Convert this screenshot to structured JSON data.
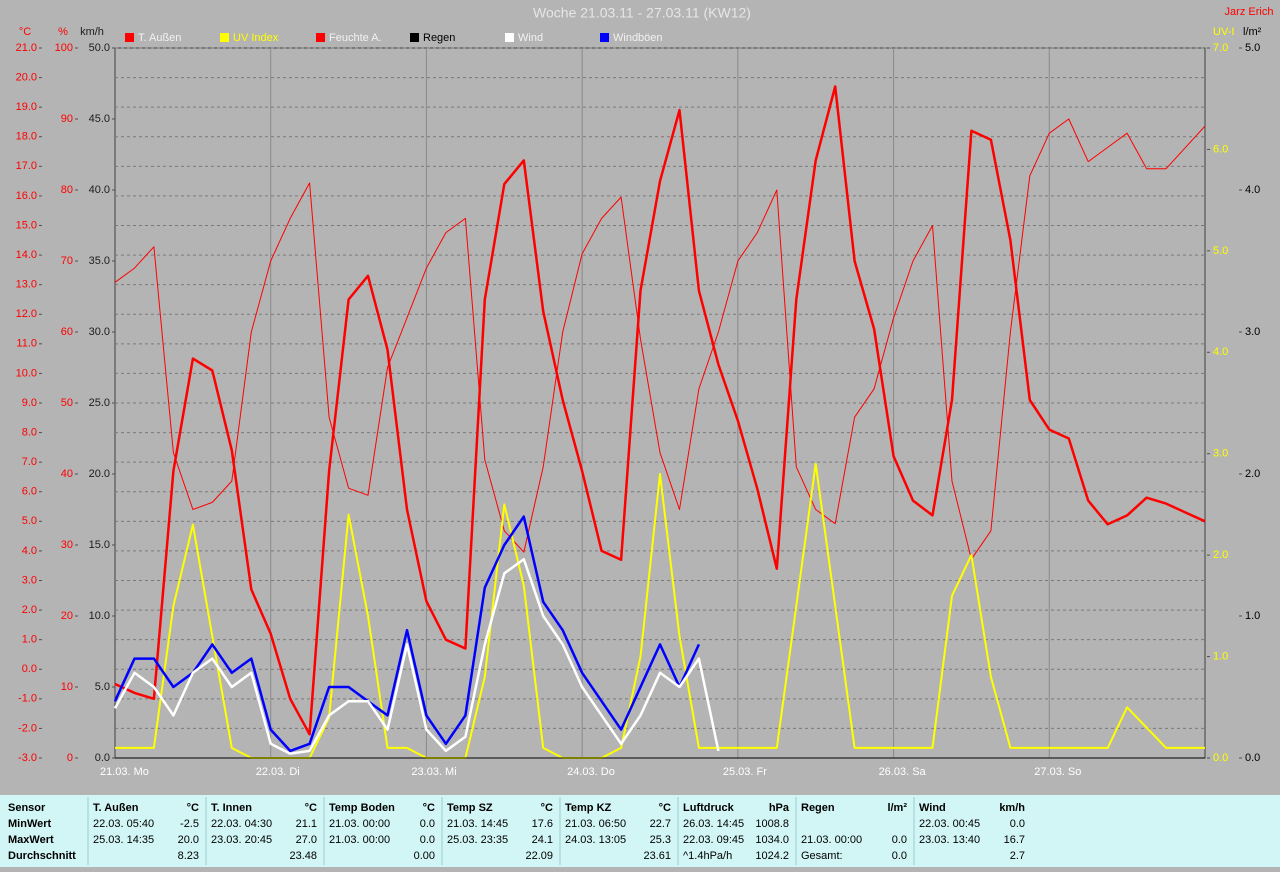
{
  "chart_data": {
    "type": "line",
    "title": "Woche 21.03.11 - 27.03.11 (KW12)",
    "author": "Jarz Erich",
    "xticks": [
      "21.03.  Mo",
      "22.03.  Di",
      "23.03.  Mi",
      "24.03.  Do",
      "25.03.  Fr",
      "26.03.  Sa",
      "27.03.  So"
    ],
    "grid": true,
    "axes": [
      {
        "label": "°C",
        "color": "#ff0000",
        "side": "left",
        "lim": [
          -3,
          21
        ],
        "ticks": [
          {
            "value": -3,
            "label": "-3.0"
          },
          {
            "value": -2,
            "label": "-2.0"
          },
          {
            "value": -1,
            "label": "-1.0"
          },
          {
            "value": 0,
            "label": "0.0"
          },
          {
            "value": 1,
            "label": "1.0"
          },
          {
            "value": 2,
            "label": "2.0"
          },
          {
            "value": 3,
            "label": "3.0"
          },
          {
            "value": 4,
            "label": "4.0"
          },
          {
            "value": 5,
            "label": "5.0"
          },
          {
            "value": 6,
            "label": "6.0"
          },
          {
            "value": 7,
            "label": "7.0"
          },
          {
            "value": 8,
            "label": "8.0"
          },
          {
            "value": 9,
            "label": "9.0"
          },
          {
            "value": 10,
            "label": "10.0"
          },
          {
            "value": 11,
            "label": "11.0"
          },
          {
            "value": 12,
            "label": "12.0"
          },
          {
            "value": 13,
            "label": "13.0"
          },
          {
            "value": 14,
            "label": "14.0"
          },
          {
            "value": 15,
            "label": "15.0"
          },
          {
            "value": 16,
            "label": "16.0"
          },
          {
            "value": 17,
            "label": "17.0"
          },
          {
            "value": 18,
            "label": "18.0"
          },
          {
            "value": 19,
            "label": "19.0"
          },
          {
            "value": 20,
            "label": "20.0"
          },
          {
            "value": 21,
            "label": "21.0"
          }
        ]
      },
      {
        "label": "%",
        "color": "#ff0000",
        "side": "left",
        "lim": [
          0,
          100
        ],
        "ticks": [
          0,
          10,
          20,
          30,
          40,
          50,
          60,
          70,
          80,
          90,
          100
        ]
      },
      {
        "label": "km/h",
        "color": "#202020",
        "side": "left",
        "lim": [
          0,
          50
        ],
        "ticks": [
          {
            "value": 0,
            "label": "0.0"
          },
          {
            "value": 5,
            "label": "5.0"
          },
          {
            "value": 10,
            "label": "10.0"
          },
          {
            "value": 15,
            "label": "15.0"
          },
          {
            "value": 20,
            "label": "20.0"
          },
          {
            "value": 25,
            "label": "25.0"
          },
          {
            "value": 30,
            "label": "30.0"
          },
          {
            "value": 35,
            "label": "35.0"
          },
          {
            "value": 40,
            "label": "40.0"
          },
          {
            "value": 45,
            "label": "45.0"
          },
          {
            "value": 50,
            "label": "50.0"
          }
        ]
      },
      {
        "label": "UV-I",
        "color": "#ffff00",
        "side": "right",
        "lim": [
          0,
          7
        ],
        "ticks": [
          {
            "value": 0,
            "label": "0.0"
          },
          {
            "value": 1,
            "label": "1.0"
          },
          {
            "value": 2,
            "label": "2.0"
          },
          {
            "value": 3,
            "label": "3.0"
          },
          {
            "value": 4,
            "label": "4.0"
          },
          {
            "value": 5,
            "label": "5.0"
          },
          {
            "value": 6,
            "label": "6.0"
          },
          {
            "value": 7,
            "label": "7.0"
          }
        ]
      },
      {
        "label": "l/m²",
        "color": "#000000",
        "side": "right",
        "lim": [
          0,
          5
        ],
        "ticks": [
          {
            "value": 0,
            "label": "0.0"
          },
          {
            "value": 1,
            "label": "1.0"
          },
          {
            "value": 2,
            "label": "2.0"
          },
          {
            "value": 3,
            "label": "3.0"
          },
          {
            "value": 4,
            "label": "4.0"
          },
          {
            "value": 5,
            "label": "5.0"
          }
        ]
      }
    ],
    "series": [
      {
        "name": "T. Außen",
        "color": "#ff0000",
        "axis": 0,
        "line_width": 2.5,
        "values": [
          -0.5,
          -0.8,
          -1.0,
          6.7,
          10.5,
          10.1,
          7.4,
          2.7,
          1.2,
          -1.0,
          -2.2,
          6.7,
          12.5,
          13.3,
          10.8,
          5.4,
          2.3,
          1.0,
          0.7,
          12.5,
          16.4,
          17.2,
          12.1,
          9.1,
          6.7,
          4.0,
          3.7,
          12.8,
          16.5,
          18.9,
          12.8,
          10.3,
          8.4,
          6.1,
          3.4,
          12.5,
          17.2,
          19.7,
          13.8,
          11.5,
          7.2,
          5.7,
          5.2,
          9.1,
          18.2,
          17.9,
          14.5,
          9.1,
          8.1,
          7.8,
          5.7,
          4.9,
          5.2,
          5.8,
          5.6,
          5.3,
          5.0
        ]
      },
      {
        "name": "UV Index",
        "color": "#ffff00",
        "axis": 3,
        "line_width": 2,
        "values": [
          0.1,
          0.1,
          0.1,
          1.5,
          2.3,
          1.2,
          0.1,
          0.0,
          0.0,
          0.0,
          0.0,
          0.4,
          2.4,
          1.4,
          0.1,
          0.1,
          0.0,
          0.0,
          0.0,
          0.8,
          2.5,
          1.7,
          0.1,
          0.0,
          0.0,
          0.0,
          0.1,
          1.0,
          2.8,
          1.2,
          0.1,
          0.1,
          0.1,
          0.1,
          0.1,
          1.5,
          2.9,
          1.5,
          0.1,
          0.1,
          0.1,
          0.1,
          0.1,
          1.6,
          2.0,
          0.8,
          0.1,
          0.1,
          0.1,
          0.1,
          0.1,
          0.1,
          0.5,
          0.3,
          0.1,
          0.1,
          0.1
        ]
      },
      {
        "name": "Feuchte A.",
        "color": "#ff0000",
        "axis": 1,
        "line_width": 1,
        "values": [
          67,
          69,
          72,
          43,
          35,
          36,
          39,
          60,
          70,
          76,
          81,
          48,
          38,
          37,
          55,
          62,
          69,
          74,
          76,
          42,
          32,
          29,
          41,
          60,
          71,
          76,
          79,
          59,
          43,
          35,
          52,
          60,
          70,
          74,
          80,
          41,
          35,
          33,
          48,
          52,
          62,
          70,
          75,
          39,
          28,
          32,
          60,
          82,
          88,
          90,
          84,
          86,
          88,
          83,
          83,
          86,
          89
        ]
      },
      {
        "name": "Regen",
        "color": "#000000",
        "axis": 4,
        "line_width": 1,
        "values": [
          0,
          0,
          0,
          0,
          0,
          0,
          0,
          0,
          0,
          0,
          0,
          0,
          0,
          0,
          0,
          0,
          0,
          0,
          0,
          0,
          0,
          0,
          0,
          0,
          0,
          0,
          0,
          0,
          0,
          0,
          0,
          0,
          0,
          0,
          0,
          0,
          0,
          0,
          0,
          0,
          0,
          0,
          0,
          0,
          0,
          0,
          0,
          0,
          0,
          0,
          0,
          0,
          0,
          0,
          0,
          0,
          0
        ]
      },
      {
        "name": "Wind",
        "color": "#ffffff",
        "axis": 2,
        "line_width": 2.5,
        "values": [
          3.5,
          6,
          5,
          3,
          6,
          7,
          5,
          6,
          1,
          0.3,
          0.5,
          3,
          4,
          4,
          2,
          8,
          2,
          0.5,
          1.5,
          8,
          13,
          14,
          10,
          8,
          5,
          3,
          1,
          3,
          6,
          5,
          7,
          0.5,
          null,
          null,
          null,
          null,
          null,
          null,
          null,
          null,
          null,
          null,
          null,
          null,
          null,
          null,
          null,
          null,
          null,
          null,
          null,
          null,
          null,
          null,
          null,
          null,
          null
        ]
      },
      {
        "name": "Windböen",
        "color": "#0000ff",
        "axis": 2,
        "line_width": 2.5,
        "values": [
          4,
          7,
          7,
          5,
          6,
          8,
          6,
          7,
          2,
          0.5,
          1,
          5,
          5,
          4,
          3,
          9,
          3,
          1,
          3,
          12,
          15,
          17,
          11,
          9,
          6,
          4,
          2,
          5,
          8,
          5,
          8,
          null,
          null,
          null,
          null,
          null,
          null,
          null,
          null,
          null,
          null,
          null,
          null,
          null,
          null,
          null,
          null,
          null,
          null,
          null,
          null,
          null,
          null,
          null,
          null,
          null,
          null
        ]
      }
    ]
  },
  "table": {
    "row_labels": [
      "Sensor",
      "MinWert",
      "MaxWert",
      "Durchschnitt"
    ],
    "columns": [
      {
        "title": "T. Außen",
        "unit": "°C",
        "min": {
          "time": "22.03.  05:40",
          "value": "-2.5"
        },
        "max": {
          "time": "25.03.  14:35",
          "value": "20.0"
        },
        "avg": {
          "value": "8.23"
        }
      },
      {
        "title": "T. Innen",
        "unit": "°C",
        "min": {
          "time": "22.03.  04:30",
          "value": "21.1"
        },
        "max": {
          "time": "23.03.  20:45",
          "value": "27.0"
        },
        "avg": {
          "value": "23.48"
        }
      },
      {
        "title": "Temp Boden",
        "unit": "°C",
        "min": {
          "time": "21.03.  00:00",
          "value": "0.0"
        },
        "max": {
          "time": "21.03.  00:00",
          "value": "0.0"
        },
        "avg": {
          "value": "0.00"
        }
      },
      {
        "title": "Temp SZ",
        "unit": "°C",
        "min": {
          "time": "21.03.  14:45",
          "value": "17.6"
        },
        "max": {
          "time": "25.03.  23:35",
          "value": "24.1"
        },
        "avg": {
          "value": "22.09"
        }
      },
      {
        "title": "Temp KZ",
        "unit": "°C",
        "min": {
          "time": "21.03.  06:50",
          "value": "22.7"
        },
        "max": {
          "time": "24.03.  13:05",
          "value": "25.3"
        },
        "avg": {
          "value": "23.61"
        }
      },
      {
        "title": "Luftdruck",
        "unit": "hPa",
        "min": {
          "time": "26.03.  14:45",
          "value": "1008.8"
        },
        "max": {
          "time": "22.03.  09:45",
          "value": "1034.0"
        },
        "avg": {
          "time": "^1.4hPa/h",
          "value": "1024.2"
        }
      },
      {
        "title": "Regen",
        "unit": "l/m²",
        "max": {
          "time": "21.03.  00:00",
          "value": "0.0"
        },
        "avg": {
          "time": "Gesamt:",
          "value": "0.0"
        }
      },
      {
        "title": "Wind",
        "unit": "km/h",
        "min": {
          "time": "22.03.  00:45",
          "value": "0.0"
        },
        "max": {
          "time": "23.03.  13:40",
          "value": "16.7"
        },
        "avg": {
          "value": "2.7"
        }
      }
    ]
  }
}
